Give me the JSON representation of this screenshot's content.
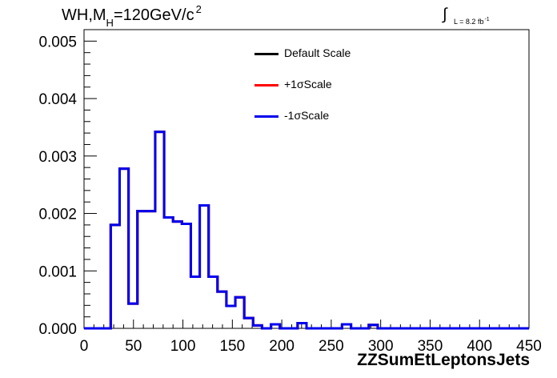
{
  "chart_data": {
    "type": "line",
    "title": "WH,M",
    "title_sub": "H",
    "title_rest": "=120GeV/c",
    "title_sup": "2",
    "lumi_prefix": "L = 8.2 fb",
    "lumi_sup": "-1",
    "xlabel": "ZZSumEtLeptonsJets",
    "xlim": [
      0,
      450
    ],
    "ylim": [
      0,
      0.0052
    ],
    "xticks": [
      "0",
      "50",
      "100",
      "150",
      "200",
      "250",
      "300",
      "350",
      "400",
      "450"
    ],
    "yticks": [
      "0.000",
      "0.001",
      "0.002",
      "0.003",
      "0.004",
      "0.005"
    ],
    "bin_edges": [
      0,
      9,
      18,
      27,
      36,
      45,
      54,
      63,
      72,
      81,
      90,
      99,
      108,
      117,
      126,
      135,
      144,
      153,
      162,
      171,
      180,
      189,
      198,
      207,
      216,
      225,
      234,
      243,
      252,
      261,
      270,
      279,
      288,
      297,
      306,
      315,
      324,
      333,
      342,
      351,
      360,
      369,
      378,
      387,
      396,
      405,
      414,
      423,
      432,
      441,
      450
    ],
    "series": [
      {
        "name": "Default Scale",
        "color": "#000000",
        "values": [
          0,
          0,
          0,
          0.0018,
          0.00278,
          0.00043,
          0.00204,
          0.00204,
          0.00342,
          0.00193,
          0.00186,
          0.00182,
          0.0009,
          0.00214,
          0.0009,
          0.00064,
          0.00039,
          0.00054,
          0.00018,
          5e-05,
          0,
          7e-05,
          0,
          0,
          9e-05,
          0,
          0,
          0,
          0,
          7e-05,
          0,
          0,
          6e-05,
          0,
          0,
          0,
          0,
          0,
          0,
          0,
          0,
          0,
          0,
          0,
          0,
          0,
          0,
          0,
          0,
          0
        ]
      },
      {
        "name": "+1σScale",
        "color": "#ff0000",
        "values": [
          0,
          0,
          0,
          0.0018,
          0.00278,
          0.00043,
          0.00204,
          0.00204,
          0.00342,
          0.00193,
          0.00186,
          0.00182,
          0.0009,
          0.00214,
          0.0009,
          0.00064,
          0.00039,
          0.00054,
          0.00018,
          5e-05,
          0,
          7e-05,
          0,
          0,
          9e-05,
          0,
          0,
          0,
          0,
          7e-05,
          0,
          0,
          6e-05,
          0,
          0,
          0,
          0,
          0,
          0,
          0,
          0,
          0,
          0,
          0,
          0,
          0,
          0,
          0,
          0,
          0
        ]
      },
      {
        "name": "-1σScale",
        "color": "#0000ee",
        "values": [
          0,
          0,
          0,
          0.0018,
          0.00278,
          0.00043,
          0.00204,
          0.00204,
          0.00342,
          0.00193,
          0.00186,
          0.00182,
          0.0009,
          0.00214,
          0.0009,
          0.00064,
          0.00039,
          0.00054,
          0.00018,
          5e-05,
          0,
          7e-05,
          0,
          0,
          9e-05,
          0,
          0,
          0,
          0,
          7e-05,
          0,
          0,
          6e-05,
          0,
          0,
          0,
          0,
          0,
          0,
          0,
          0,
          0,
          0,
          0,
          0,
          0,
          0,
          0,
          0,
          0
        ]
      }
    ],
    "legend_position": "top-center",
    "grid": false
  }
}
